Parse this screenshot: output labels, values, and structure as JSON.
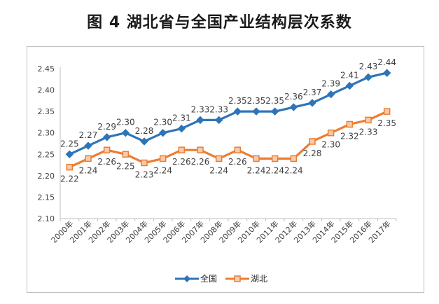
{
  "title": "图 4  湖北省与全国产业结构层次系数",
  "chart_data": {
    "type": "line",
    "title": "",
    "xlabel": "",
    "ylabel": "",
    "categories": [
      "2000年",
      "2001年",
      "2002年",
      "2003年",
      "2004年",
      "2005年",
      "2006年",
      "2007年",
      "2008年",
      "2009年",
      "2010年",
      "2011年",
      "2012年",
      "2013年",
      "2014年",
      "2015年",
      "2016年",
      "2017年"
    ],
    "ylim": [
      2.1,
      2.45
    ],
    "yticks": [
      "2.10",
      "2.15",
      "2.20",
      "2.25",
      "2.30",
      "2.35",
      "2.40",
      "2.45"
    ],
    "grid": false,
    "legend_position": "bottom",
    "series": [
      {
        "name": "全国",
        "color": "#2e75b6",
        "marker": "diamond",
        "values": [
          2.25,
          2.27,
          2.29,
          2.3,
          2.28,
          2.3,
          2.31,
          2.33,
          2.33,
          2.35,
          2.35,
          2.35,
          2.36,
          2.37,
          2.39,
          2.41,
          2.43,
          2.44
        ],
        "labels": [
          "2.25",
          "2.27",
          "2.29",
          "2.30",
          "2.28",
          "2.30",
          "2.31",
          "2.33",
          "2.33",
          "2.35",
          "2.35",
          "2.35",
          "2.36",
          "2.37",
          "2.39",
          "2.41",
          "2.43",
          "2.44"
        ]
      },
      {
        "name": "湖北",
        "color": "#ed7d31",
        "marker": "square",
        "values": [
          2.22,
          2.24,
          2.26,
          2.25,
          2.23,
          2.24,
          2.26,
          2.26,
          2.24,
          2.26,
          2.24,
          2.24,
          2.24,
          2.28,
          2.3,
          2.32,
          2.33,
          2.35
        ],
        "labels": [
          "2.22",
          "2.24",
          "2.26",
          "2.25",
          "2.23",
          "2.24",
          "2.26",
          "2.26",
          "2.24",
          "2.26",
          "2.24",
          "2.24",
          "2.24",
          "2.28",
          "2.30",
          "2.32",
          "2.33",
          "2.35"
        ]
      }
    ]
  }
}
